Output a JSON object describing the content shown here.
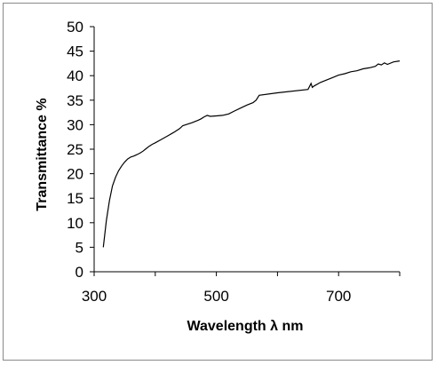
{
  "chart_data": {
    "type": "line",
    "xlabel": "Wavelength λ nm",
    "ylabel": "Transmittance %",
    "xlim": [
      300,
      800
    ],
    "ylim": [
      0,
      50
    ],
    "x_ticks": [
      300,
      500,
      700
    ],
    "y_ticks": [
      0,
      5,
      10,
      15,
      20,
      25,
      30,
      35,
      40,
      45,
      50
    ],
    "grid": false,
    "legend": "none",
    "line_color": "#000000",
    "series": [
      {
        "x": [
          315,
          320,
          325,
          330,
          335,
          340,
          345,
          350,
          355,
          360,
          365,
          370,
          375,
          380,
          385,
          390,
          395,
          400,
          410,
          420,
          430,
          440,
          445,
          450,
          460,
          470,
          475,
          480,
          485,
          490,
          500,
          510,
          520,
          530,
          540,
          550,
          560,
          565,
          570,
          600,
          650,
          655,
          657,
          660,
          670,
          680,
          690,
          700,
          710,
          720,
          730,
          740,
          750,
          760,
          765,
          770,
          775,
          780,
          790,
          800
        ],
        "y": [
          5,
          10.5,
          14.5,
          17.5,
          19.3,
          20.6,
          21.6,
          22.4,
          23,
          23.4,
          23.6,
          23.9,
          24.2,
          24.6,
          25.1,
          25.6,
          26,
          26.3,
          27,
          27.7,
          28.4,
          29.2,
          29.8,
          30,
          30.4,
          30.9,
          31.2,
          31.6,
          31.9,
          31.7,
          31.8,
          31.9,
          32.2,
          32.8,
          33.4,
          34,
          34.5,
          35,
          36,
          36.5,
          37.2,
          38.4,
          37.6,
          37.9,
          38.6,
          39.1,
          39.6,
          40.1,
          40.4,
          40.8,
          41,
          41.4,
          41.6,
          41.9,
          42.4,
          42.2,
          42.6,
          42.3,
          42.8,
          43
        ]
      }
    ]
  }
}
